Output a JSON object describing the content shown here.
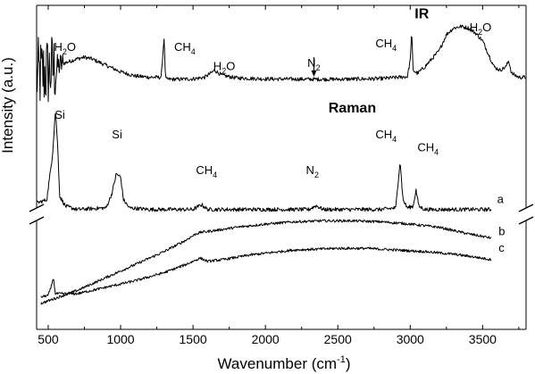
{
  "chart_data": {
    "type": "line",
    "xlabel": "Wavenumber (cm",
    "xlabel_sup": "-1",
    "xlabel_close": ")",
    "ylabel": "Intensity (a.u.)",
    "xlim": [
      420,
      3800
    ],
    "ylim": [
      0,
      100
    ],
    "grid": false,
    "y_axis_break": true,
    "x_ticks": [
      500,
      1000,
      1500,
      2000,
      2500,
      3000,
      3500
    ],
    "x_tick_labels": [
      "500",
      "1000",
      "1500",
      "2000",
      "2500",
      "3000",
      "3500"
    ],
    "panel_labels": [
      {
        "text": "IR",
        "x": 3080,
        "y": 96
      },
      {
        "text": "Raman",
        "x": 2600,
        "y": 67
      }
    ],
    "curve_labels": [
      {
        "text": "a",
        "x": 3600,
        "y": 39
      },
      {
        "text": "b",
        "x": 3610,
        "y": 29
      },
      {
        "text": "c",
        "x": 3610,
        "y": 24
      }
    ],
    "annotations": [
      {
        "text": "H",
        "sub": "2",
        "rest": "O",
        "x": 540,
        "y": 86
      },
      {
        "text": "CH",
        "sub": "4",
        "rest": "",
        "x": 1370,
        "y": 86
      },
      {
        "text": "H",
        "sub": "2",
        "rest": "O",
        "x": 1640,
        "y": 80
      },
      {
        "text": "N",
        "sub": "2",
        "rest": "",
        "x": 2290,
        "y": 81
      },
      {
        "text": "CH",
        "sub": "4",
        "rest": "",
        "x": 2760,
        "y": 87
      },
      {
        "text": "H",
        "sub": "2",
        "rest": "O",
        "x": 3410,
        "y": 92
      },
      {
        "text": "Si",
        "x": 545,
        "y": 65
      },
      {
        "text": "Si",
        "x": 940,
        "y": 59
      },
      {
        "text": "CH",
        "sub": "4",
        "rest": "",
        "x": 1520,
        "y": 48
      },
      {
        "text": "N",
        "sub": "2",
        "rest": "",
        "x": 2280,
        "y": 48
      },
      {
        "text": "CH",
        "sub": "4",
        "rest": "",
        "x": 2760,
        "y": 59
      },
      {
        "text": "CH",
        "sub": "4",
        "rest": "",
        "x": 3050,
        "y": 55
      }
    ],
    "arrow": {
      "x": 2335,
      "y_from": 84,
      "y_to": 78
    },
    "series": [
      {
        "baseline": 77,
        "noise": 0.6,
        "x_end": 3800,
        "x": [
          420,
          520,
          600,
          700,
          750,
          800,
          900,
          1000,
          1100,
          1200,
          1280,
          1300,
          1310,
          1320,
          1400,
          1500,
          1580,
          1620,
          1650,
          1700,
          1800,
          2000,
          2300,
          2500,
          2700,
          2800,
          2980,
          3000,
          3010,
          3020,
          3050,
          3100,
          3200,
          3250,
          3300,
          3350,
          3400,
          3450,
          3500,
          3580,
          3620,
          3660,
          3680,
          3700,
          3750,
          3800
        ],
        "y": [
          78,
          80,
          82,
          83.5,
          84,
          83.5,
          81.5,
          79.5,
          78.2,
          77.8,
          77.8,
          90,
          77.5,
          77.2,
          77.2,
          77.3,
          77.8,
          79,
          80,
          78.4,
          77.6,
          77.3,
          77.2,
          77.2,
          77.3,
          77.4,
          78,
          83,
          92,
          80,
          79,
          81,
          86,
          91,
          93,
          93.5,
          93,
          91.5,
          89,
          81,
          80,
          81,
          83,
          79,
          77.8,
          77.8
        ],
        "extra_noise": [
          [
            420,
            560,
            12
          ],
          [
            560,
            600,
            4
          ]
        ]
      },
      {
        "baseline": 37,
        "noise": 0.6,
        "x_end": 3560,
        "x": [
          420,
          490,
          530,
          550,
          565,
          580,
          620,
          700,
          900,
          940,
          970,
          1000,
          1020,
          1060,
          1200,
          1500,
          1560,
          1600,
          2000,
          2300,
          2350,
          2400,
          2800,
          2900,
          2930,
          2950,
          2980,
          3020,
          3040,
          3060,
          3100,
          3500,
          3560
        ],
        "y": [
          39,
          40,
          54,
          68,
          57,
          41,
          38,
          37,
          37.5,
          42,
          48,
          47,
          40,
          37.5,
          37,
          37,
          38.5,
          37,
          37,
          37,
          38.2,
          37,
          37,
          37.5,
          52,
          40,
          37.5,
          38,
          43,
          38,
          37,
          37,
          37
        ],
        "extra_noise": []
      },
      {
        "baseline": 23,
        "noise": 0.4,
        "x_end": 3560,
        "x": [
          450,
          700,
          900,
          1100,
          1300,
          1450,
          1520,
          1560,
          1650,
          1800,
          2000,
          2200,
          2400,
          2600,
          2800,
          3000,
          3200,
          3400,
          3560
        ],
        "y": [
          8,
          12,
          16,
          20,
          24,
          27.5,
          29.5,
          30,
          30.5,
          31.5,
          32.5,
          33.2,
          33.5,
          33.5,
          33.2,
          32.5,
          31.5,
          29.5,
          28.2
        ],
        "extra_noise": []
      },
      {
        "baseline": 20,
        "noise": 0.4,
        "x_end": 3560,
        "x": [
          450,
          500,
          520,
          535,
          550,
          700,
          900,
          1100,
          1300,
          1450,
          1550,
          1600,
          1700,
          1900,
          2200,
          2500,
          2700,
          2900,
          3100,
          3300,
          3450,
          3560
        ],
        "y": [
          10,
          10.5,
          13,
          16,
          11,
          11,
          13,
          15,
          17.5,
          20,
          22,
          21,
          21.5,
          23,
          24.5,
          25,
          25,
          24.5,
          24,
          23.2,
          22.3,
          21.5
        ],
        "extra_noise": []
      }
    ]
  }
}
